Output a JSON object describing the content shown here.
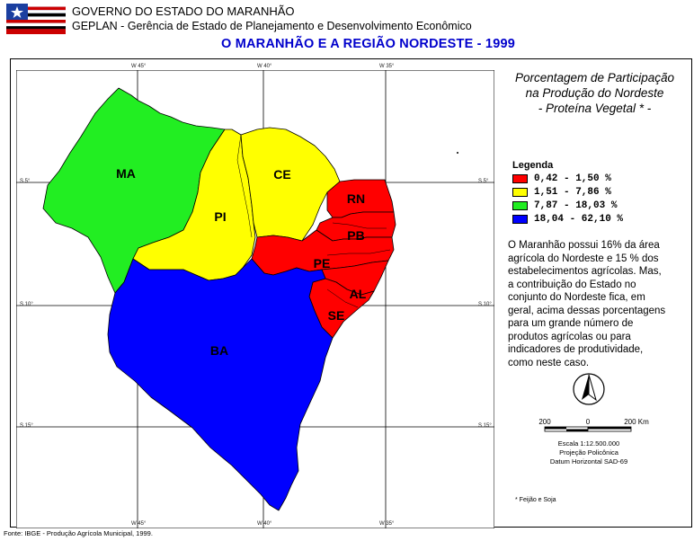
{
  "header": {
    "line1": "GOVERNO DO ESTADO DO MARANHÃO",
    "line2": "GEPLAN - Gerência de Estado de Planejamento e Desenvolvimento Econômico",
    "map_title": "O MARANHÃO E A REGIÃO NORDESTE - 1999"
  },
  "grid_labels": {
    "top": [
      "W 45°",
      "W 40°",
      "W 35°"
    ],
    "bottom": [
      "W 45°",
      "W 40°",
      "W 35°"
    ],
    "left": [
      "S 5°",
      "S 10°",
      "S 15°"
    ],
    "right": [
      "S 5°",
      "S 10°",
      "S 15°"
    ]
  },
  "states": [
    {
      "abbr": "MA",
      "class": "7,87 - 18,03 %"
    },
    {
      "abbr": "PI",
      "class": "1,51 - 7,86 %"
    },
    {
      "abbr": "CE",
      "class": "1,51 - 7,86 %"
    },
    {
      "abbr": "RN",
      "class": "0,42 - 1,50 %"
    },
    {
      "abbr": "PB",
      "class": "0,42 - 1,50 %"
    },
    {
      "abbr": "PE",
      "class": "0,42 - 1,50 %"
    },
    {
      "abbr": "AL",
      "class": "0,42 - 1,50 %"
    },
    {
      "abbr": "SE",
      "class": "0,42 - 1,50 %"
    },
    {
      "abbr": "BA",
      "class": "18,04 - 62,10 %"
    }
  ],
  "panel_title": [
    "Porcentagem de Participação",
    "na Produção do Nordeste",
    "- Proteína Vegetal * -"
  ],
  "legend": {
    "title": "Legenda",
    "items": [
      {
        "label": "0,42 - 1,50 %",
        "color": "#ff0000"
      },
      {
        "label": "1,51 - 7,86 %",
        "color": "#ffff00"
      },
      {
        "label": "7,87 - 18,03 %",
        "color": "#22ee22"
      },
      {
        "label": "18,04 - 62,10 %",
        "color": "#0000ff"
      }
    ]
  },
  "description": [
    "O Maranhão possui 16% da área",
    "agrícola do Nordeste e 15 % dos",
    "estabelecimentos agrícolas. Mas,",
    "a contribuição do Estado no",
    "conjunto do Nordeste fica, em",
    "geral, acima dessas porcentagens",
    "para um grande número de",
    "produtos agrícolas ou para",
    "indicadores de produtividade,",
    "como neste caso."
  ],
  "scale": {
    "left": "200",
    "mid": "0",
    "right": "200 Km"
  },
  "scale_info": [
    "Escala 1:12.500.000",
    "Projeção Policônica",
    "Datum Horizontal SAD-69"
  ],
  "footnote": "* Feijão e Soja",
  "source": "Fonte: IBGE - Produção Agrícola Municipal, 1999."
}
